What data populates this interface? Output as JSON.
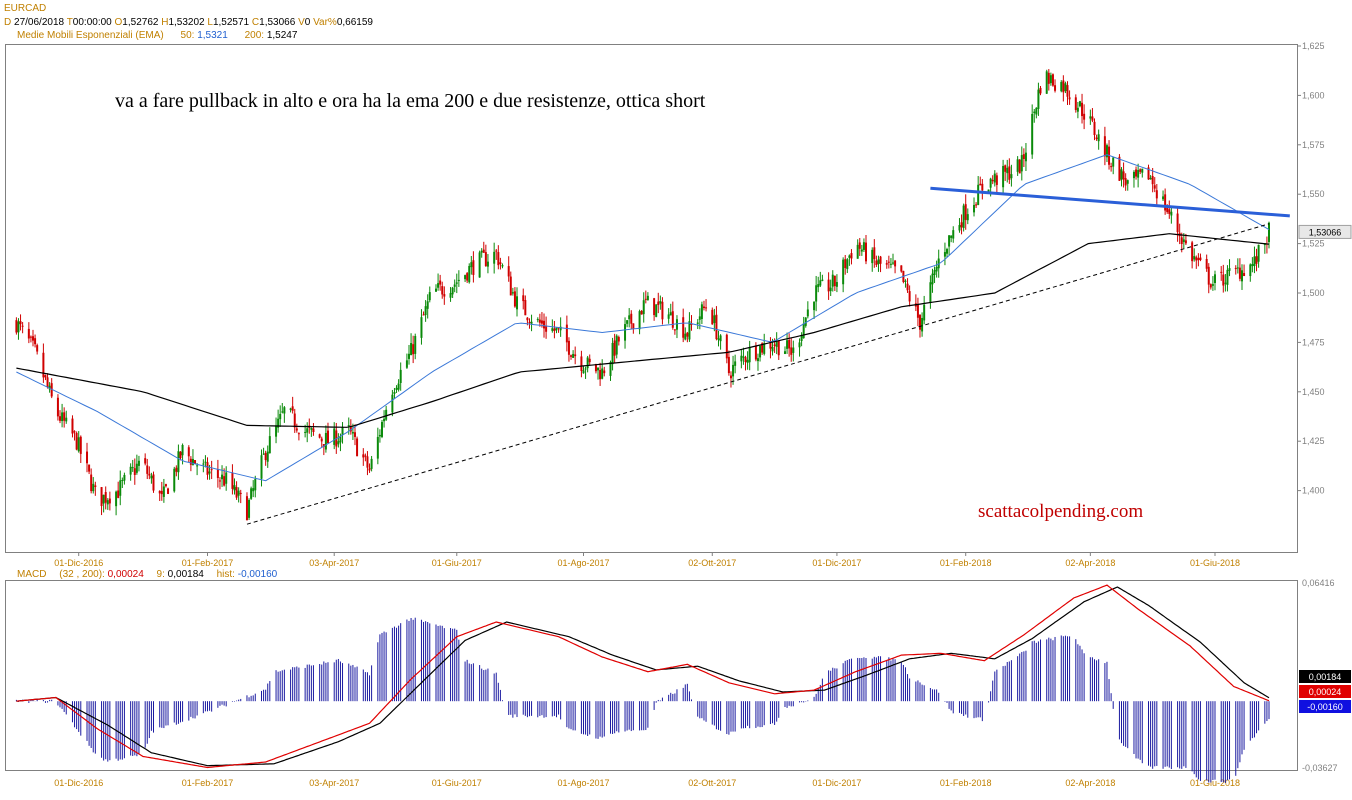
{
  "header": {
    "symbol": "EURCAD",
    "d_label": "D",
    "date": "27/06/2018",
    "t_label": "T",
    "time": "00:00:00",
    "o_label": "O",
    "open": "1,52762",
    "h_label": "H",
    "high": "1,53202",
    "l_label": "L",
    "low": "1,52571",
    "c_label": "C",
    "close": "1,53066",
    "v_label": "V",
    "volume": "0",
    "var_label": "Var%",
    "var": "0,66159"
  },
  "ema": {
    "name": "Medie Mobili Esponenziali (EMA)",
    "p1": "50",
    "v1": "1,5321",
    "p2": "200",
    "v2": "1,5247"
  },
  "macd_header": {
    "name": "MACD",
    "params": "(32 , 200)",
    "value": "0,00024",
    "signal_period": "9",
    "signal": "0,00184",
    "hist_label": "hist",
    "hist": "-0,00160"
  },
  "annotation": "va a fare pullback in alto e ora ha la ema 200 e due resistenze, ottica short",
  "watermark": "scattacolpending.com",
  "colors": {
    "up": "#0a8a0a",
    "down": "#d00000",
    "ema50": "#3a78d8",
    "ema200": "#000000",
    "resistance": "#2a5fd8",
    "macd": "#000000",
    "signal": "#e00000",
    "hist": "#1a1aa0"
  },
  "chart_data": [
    {
      "type": "candlestick",
      "symbol": "EURCAD",
      "ylim": [
        1.375,
        1.625
      ],
      "yticks": [
        "1,625",
        "1,600",
        "1,575",
        "1,550",
        "1,525",
        "1,500",
        "1,475",
        "1,450",
        "1,425",
        "1,400"
      ],
      "xticks": [
        "01-Dic-2016",
        "01-Feb-2017",
        "03-Apr-2017",
        "01-Giu-2017",
        "01-Ago-2017",
        "02-Ott-2017",
        "01-Dic-2017",
        "01-Feb-2018",
        "02-Apr-2018",
        "01-Giu-2018"
      ],
      "last_price_label": "1,53066",
      "close_path": [
        [
          "2016-11-01",
          1.485
        ],
        [
          "2016-11-10",
          1.47
        ],
        [
          "2016-11-20",
          1.44
        ],
        [
          "2016-11-30",
          1.425
        ],
        [
          "2016-12-10",
          1.395
        ],
        [
          "2016-12-20",
          1.4
        ],
        [
          "2016-12-31",
          1.415
        ],
        [
          "2017-01-10",
          1.395
        ],
        [
          "2017-01-20",
          1.42
        ],
        [
          "2017-01-31",
          1.41
        ],
        [
          "2017-02-10",
          1.405
        ],
        [
          "2017-02-20",
          1.39
        ],
        [
          "2017-03-01",
          1.42
        ],
        [
          "2017-03-10",
          1.44
        ],
        [
          "2017-03-20",
          1.43
        ],
        [
          "2017-03-31",
          1.425
        ],
        [
          "2017-04-10",
          1.43
        ],
        [
          "2017-04-20",
          1.41
        ],
        [
          "2017-04-30",
          1.45
        ],
        [
          "2017-05-10",
          1.47
        ],
        [
          "2017-05-20",
          1.5
        ],
        [
          "2017-05-31",
          1.505
        ],
        [
          "2017-06-10",
          1.515
        ],
        [
          "2017-06-20",
          1.52
        ],
        [
          "2017-06-30",
          1.495
        ],
        [
          "2017-07-10",
          1.485
        ],
        [
          "2017-07-20",
          1.48
        ],
        [
          "2017-07-31",
          1.465
        ],
        [
          "2017-08-10",
          1.46
        ],
        [
          "2017-08-20",
          1.48
        ],
        [
          "2017-08-31",
          1.495
        ],
        [
          "2017-09-10",
          1.49
        ],
        [
          "2017-09-20",
          1.48
        ],
        [
          "2017-09-30",
          1.495
        ],
        [
          "2017-10-10",
          1.46
        ],
        [
          "2017-10-20",
          1.47
        ],
        [
          "2017-10-31",
          1.475
        ],
        [
          "2017-11-10",
          1.47
        ],
        [
          "2017-11-20",
          1.5
        ],
        [
          "2017-11-30",
          1.505
        ],
        [
          "2017-12-10",
          1.525
        ],
        [
          "2017-12-20",
          1.515
        ],
        [
          "2017-12-31",
          1.51
        ],
        [
          "2018-01-10",
          1.485
        ],
        [
          "2018-01-20",
          1.52
        ],
        [
          "2018-01-31",
          1.54
        ],
        [
          "2018-02-10",
          1.555
        ],
        [
          "2018-02-20",
          1.56
        ],
        [
          "2018-02-28",
          1.565
        ],
        [
          "2018-03-10",
          1.61
        ],
        [
          "2018-03-20",
          1.605
        ],
        [
          "2018-03-31",
          1.59
        ],
        [
          "2018-04-10",
          1.57
        ],
        [
          "2018-04-20",
          1.555
        ],
        [
          "2018-04-30",
          1.56
        ],
        [
          "2018-05-10",
          1.54
        ],
        [
          "2018-05-20",
          1.52
        ],
        [
          "2018-05-31",
          1.505
        ],
        [
          "2018-06-10",
          1.51
        ],
        [
          "2018-06-20",
          1.515
        ],
        [
          "2018-06-27",
          1.5307
        ]
      ],
      "series": [
        {
          "name": "50",
          "values": [
            [
              "2016-11-01",
              1.46
            ],
            [
              "2016-12-10",
              1.44
            ],
            [
              "2017-01-20",
              1.415
            ],
            [
              "2017-03-01",
              1.405
            ],
            [
              "2017-04-10",
              1.43
            ],
            [
              "2017-05-20",
              1.46
            ],
            [
              "2017-06-30",
              1.485
            ],
            [
              "2017-08-10",
              1.48
            ],
            [
              "2017-09-20",
              1.485
            ],
            [
              "2017-10-31",
              1.475
            ],
            [
              "2017-12-10",
              1.5
            ],
            [
              "2018-01-20",
              1.515
            ],
            [
              "2018-03-01",
              1.555
            ],
            [
              "2018-04-10",
              1.57
            ],
            [
              "2018-05-20",
              1.555
            ],
            [
              "2018-06-27",
              1.5321
            ]
          ]
        },
        {
          "name": "200",
          "values": [
            [
              "2016-11-01",
              1.462
            ],
            [
              "2017-01-01",
              1.45
            ],
            [
              "2017-02-20",
              1.433
            ],
            [
              "2017-04-10",
              1.432
            ],
            [
              "2017-05-20",
              1.445
            ],
            [
              "2017-07-01",
              1.46
            ],
            [
              "2017-08-20",
              1.465
            ],
            [
              "2017-10-10",
              1.47
            ],
            [
              "2017-11-20",
              1.48
            ],
            [
              "2018-01-01",
              1.493
            ],
            [
              "2018-02-15",
              1.5
            ],
            [
              "2018-04-01",
              1.525
            ],
            [
              "2018-05-10",
              1.53
            ],
            [
              "2018-06-27",
              1.5247
            ]
          ]
        }
      ],
      "trendline": [
        [
          "2017-02-20",
          1.383
        ],
        [
          "2018-06-27",
          1.535
        ]
      ],
      "resistance": [
        [
          "2018-01-15",
          1.553
        ],
        [
          "2018-07-07",
          1.539
        ]
      ]
    },
    {
      "type": "line",
      "name": "MACD",
      "ylim": [
        -0.03627,
        0.06416
      ],
      "yticks": [
        "0,06416",
        "-0,03627"
      ],
      "labels": [
        "0,00184",
        "0,00024",
        "-0,00160"
      ],
      "series": [
        {
          "name": "MACD",
          "values": [
            [
              "2016-11-01",
              0.0
            ],
            [
              "2016-11-20",
              0.002
            ],
            [
              "2016-12-10",
              -0.015
            ],
            [
              "2017-01-01",
              -0.03
            ],
            [
              "2017-02-01",
              -0.036
            ],
            [
              "2017-03-01",
              -0.033
            ],
            [
              "2017-04-01",
              -0.02
            ],
            [
              "2017-04-20",
              -0.012
            ],
            [
              "2017-05-10",
              0.012
            ],
            [
              "2017-06-01",
              0.035
            ],
            [
              "2017-06-20",
              0.043
            ],
            [
              "2017-07-20",
              0.035
            ],
            [
              "2017-08-10",
              0.024
            ],
            [
              "2017-09-01",
              0.016
            ],
            [
              "2017-09-20",
              0.02
            ],
            [
              "2017-10-10",
              0.01
            ],
            [
              "2017-11-01",
              0.004
            ],
            [
              "2017-11-20",
              0.006
            ],
            [
              "2017-12-10",
              0.016
            ],
            [
              "2018-01-01",
              0.025
            ],
            [
              "2018-01-20",
              0.026
            ],
            [
              "2018-02-10",
              0.022
            ],
            [
              "2018-03-01",
              0.036
            ],
            [
              "2018-03-25",
              0.056
            ],
            [
              "2018-04-10",
              0.063
            ],
            [
              "2018-04-25",
              0.05
            ],
            [
              "2018-05-20",
              0.03
            ],
            [
              "2018-06-10",
              0.008
            ],
            [
              "2018-06-27",
              0.00024
            ]
          ]
        },
        {
          "name": "9",
          "values": [
            [
              "2016-11-01",
              0.0
            ],
            [
              "2016-11-20",
              0.002
            ],
            [
              "2016-12-15",
              -0.013
            ],
            [
              "2017-01-05",
              -0.028
            ],
            [
              "2017-02-01",
              -0.035
            ],
            [
              "2017-03-05",
              -0.034
            ],
            [
              "2017-04-05",
              -0.022
            ],
            [
              "2017-04-25",
              -0.012
            ],
            [
              "2017-05-15",
              0.01
            ],
            [
              "2017-06-05",
              0.033
            ],
            [
              "2017-06-25",
              0.043
            ],
            [
              "2017-07-25",
              0.035
            ],
            [
              "2017-08-15",
              0.025
            ],
            [
              "2017-09-05",
              0.017
            ],
            [
              "2017-09-25",
              0.019
            ],
            [
              "2017-10-15",
              0.011
            ],
            [
              "2017-11-05",
              0.005
            ],
            [
              "2017-11-25",
              0.006
            ],
            [
              "2017-12-15",
              0.014
            ],
            [
              "2018-01-05",
              0.023
            ],
            [
              "2018-01-25",
              0.026
            ],
            [
              "2018-02-15",
              0.023
            ],
            [
              "2018-03-05",
              0.034
            ],
            [
              "2018-03-30",
              0.054
            ],
            [
              "2018-04-15",
              0.062
            ],
            [
              "2018-04-30",
              0.052
            ],
            [
              "2018-05-25",
              0.032
            ],
            [
              "2018-06-15",
              0.01
            ],
            [
              "2018-06-27",
              0.00184
            ]
          ]
        }
      ]
    }
  ]
}
